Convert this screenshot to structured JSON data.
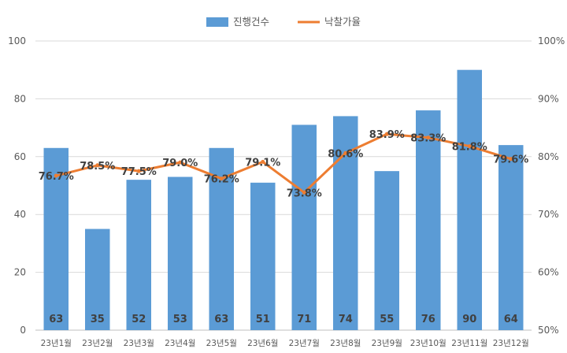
{
  "chart_data": {
    "type": "bar",
    "categories": [
      "23년1월",
      "23년2월",
      "23년3월",
      "23년4월",
      "23년5월",
      "23년6월",
      "23년7월",
      "23년8월",
      "23년9월",
      "23년10월",
      "23년11월",
      "23년12월"
    ],
    "series": [
      {
        "name": "진행건수",
        "type": "bar",
        "axis": "left",
        "color": "#5B9BD5",
        "values": [
          63,
          35,
          52,
          53,
          63,
          51,
          71,
          74,
          55,
          76,
          90,
          64
        ],
        "labels": [
          "63",
          "35",
          "52",
          "53",
          "63",
          "51",
          "71",
          "74",
          "55",
          "76",
          "90",
          "64"
        ]
      },
      {
        "name": "낙찰가율",
        "type": "line",
        "axis": "right",
        "color": "#ED7D31",
        "values": [
          76.7,
          78.5,
          77.5,
          79.0,
          76.2,
          79.1,
          73.8,
          80.6,
          83.9,
          83.3,
          81.8,
          79.6
        ],
        "labels": [
          "76.7%",
          "78.5%",
          "77.5%",
          "79.0%",
          "76.2%",
          "79.1%",
          "73.8%",
          "80.6%",
          "83.9%",
          "83.3%",
          "81.8%",
          "79.6%"
        ]
      }
    ],
    "y_left": {
      "min": 0,
      "max": 100,
      "ticks": [
        "0",
        "20",
        "40",
        "60",
        "80",
        "100"
      ],
      "tick_values": [
        0,
        20,
        40,
        60,
        80,
        100
      ]
    },
    "y_right": {
      "min": 50,
      "max": 100,
      "ticks": [
        "50%",
        "60%",
        "70%",
        "80%",
        "90%",
        "100%"
      ],
      "tick_values": [
        50,
        60,
        70,
        80,
        90,
        100
      ]
    },
    "grid": true,
    "legend_position": "top-center"
  }
}
